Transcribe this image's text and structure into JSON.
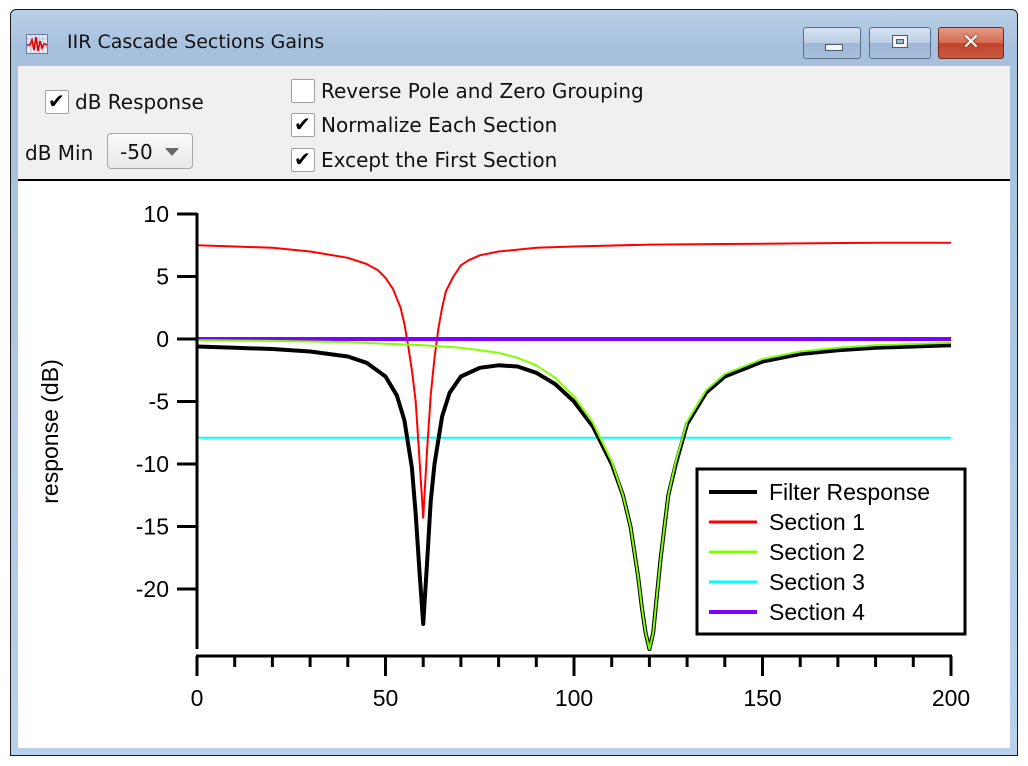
{
  "window": {
    "title": "IIR Cascade Sections Gains",
    "icon": "waveform-icon",
    "buttons": {
      "minimize": "minimize-icon",
      "maximize": "maximize-icon",
      "close": "close-icon",
      "close_glyph": "✕"
    }
  },
  "controls": {
    "db_response": {
      "label": "dB Response",
      "checked": true
    },
    "db_min": {
      "label": "dB Min",
      "value": "-50"
    },
    "reverse_grouping": {
      "label": "Reverse Pole and Zero Grouping",
      "checked": false
    },
    "normalize_each": {
      "label": "Normalize Each Section",
      "checked": true
    },
    "except_first": {
      "label": "Except the First Section",
      "checked": true
    },
    "check_glyph": "✔"
  },
  "chart_data": {
    "type": "line",
    "title": "",
    "xlabel": "",
    "ylabel": "response (dB)",
    "xlim": [
      0,
      200
    ],
    "ylim": [
      -24.8,
      10
    ],
    "x_ticks": [
      0,
      50,
      100,
      150,
      200
    ],
    "x_minor_step": 10,
    "y_ticks": [
      10,
      5,
      0,
      -5,
      -10,
      -15,
      -20
    ],
    "grid": false,
    "legend_position": "lower-right",
    "series": [
      {
        "name": "Filter Response",
        "color": "#000000",
        "width": 4,
        "x": [
          0,
          10,
          20,
          30,
          40,
          45,
          50,
          53,
          55,
          57,
          58,
          59,
          60,
          61,
          62,
          63,
          65,
          67,
          70,
          75,
          80,
          85,
          90,
          95,
          100,
          105,
          110,
          113,
          115,
          117,
          118,
          119,
          120,
          121,
          122,
          123,
          124,
          125,
          127,
          130,
          135,
          140,
          150,
          160,
          170,
          180,
          190,
          200
        ],
        "y": [
          -0.6,
          -0.7,
          -0.8,
          -1.0,
          -1.4,
          -1.9,
          -3.0,
          -4.5,
          -6.5,
          -10.3,
          -14.0,
          -18.5,
          -22.8,
          -18.0,
          -13.0,
          -10.0,
          -6.2,
          -4.3,
          -3.0,
          -2.3,
          -2.1,
          -2.2,
          -2.7,
          -3.6,
          -5.0,
          -7.0,
          -10.0,
          -12.5,
          -15.0,
          -19.0,
          -21.5,
          -23.5,
          -24.8,
          -23.5,
          -20.5,
          -17.5,
          -15.0,
          -12.5,
          -10.0,
          -6.8,
          -4.3,
          -3.0,
          -1.8,
          -1.2,
          -0.9,
          -0.7,
          -0.6,
          -0.5
        ]
      },
      {
        "name": "Section 1",
        "color": "#ff0000",
        "width": 2,
        "x": [
          0,
          10,
          20,
          30,
          40,
          45,
          48,
          50,
          52,
          54,
          55,
          56,
          57,
          58,
          59,
          60,
          61,
          62,
          63,
          64,
          65,
          66,
          68,
          70,
          72,
          75,
          80,
          90,
          100,
          120,
          140,
          160,
          180,
          200
        ],
        "y": [
          7.5,
          7.4,
          7.3,
          7.0,
          6.5,
          6.0,
          5.5,
          4.9,
          4.0,
          2.5,
          1.2,
          -0.5,
          -2.5,
          -5.0,
          -9.5,
          -14.3,
          -9.0,
          -4.5,
          -1.5,
          0.8,
          2.5,
          3.8,
          5.0,
          5.9,
          6.3,
          6.7,
          7.0,
          7.3,
          7.4,
          7.55,
          7.6,
          7.65,
          7.7,
          7.7
        ]
      },
      {
        "name": "Section 2",
        "color": "#80ff00",
        "width": 2,
        "x": [
          0,
          20,
          40,
          60,
          70,
          80,
          85,
          90,
          95,
          100,
          105,
          110,
          113,
          115,
          117,
          118,
          119,
          120,
          121,
          122,
          123,
          124,
          125,
          127,
          130,
          135,
          140,
          150,
          160,
          170,
          180,
          190,
          200
        ],
        "y": [
          -0.1,
          -0.15,
          -0.25,
          -0.5,
          -0.7,
          -1.1,
          -1.5,
          -2.1,
          -3.1,
          -4.6,
          -6.7,
          -9.8,
          -12.5,
          -15.0,
          -19.0,
          -21.5,
          -23.5,
          -24.8,
          -23.5,
          -20.5,
          -17.5,
          -15.0,
          -12.5,
          -9.8,
          -6.6,
          -4.1,
          -2.8,
          -1.6,
          -1.0,
          -0.7,
          -0.5,
          -0.4,
          -0.3
        ]
      },
      {
        "name": "Section 3",
        "color": "#00ffff",
        "width": 2,
        "x": [
          0,
          200
        ],
        "y": [
          -7.9,
          -7.9
        ]
      },
      {
        "name": "Section 4",
        "color": "#8000ff",
        "width": 4,
        "x": [
          0,
          200
        ],
        "y": [
          0,
          0
        ]
      }
    ]
  }
}
